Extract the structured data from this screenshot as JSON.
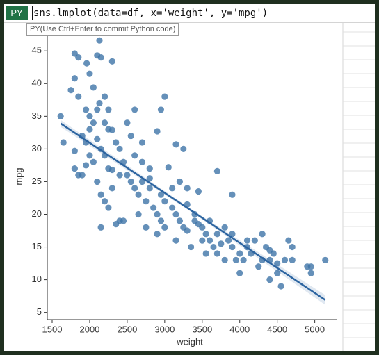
{
  "formula_bar": {
    "badge": "PY",
    "formula": "sns.lmplot(data=df, x='weight', y='mpg')"
  },
  "tooltip": "PY(Use Ctrl+Enter to commit Python code)",
  "chart_data": {
    "type": "scatter",
    "x_label": "weight",
    "y_label": "mpg",
    "color": "#3f74a8",
    "fit_color": "#2c64a0",
    "xlim": [
      1435,
      5300
    ],
    "ylim": [
      3.9,
      48
    ],
    "xticks": [
      1500,
      2000,
      2500,
      3000,
      3500,
      4000,
      4500,
      5000
    ],
    "yticks": [
      5,
      10,
      15,
      20,
      25,
      30,
      35,
      40,
      45
    ],
    "x": [
      1613,
      1650,
      1800,
      1850,
      1960,
      2130,
      2100,
      2150,
      2300,
      1750,
      1800,
      1850,
      2000,
      2050,
      2130,
      2200,
      2950,
      3000,
      2900,
      3150,
      3250,
      3700,
      3900,
      3050,
      2150,
      2400,
      2450,
      2300,
      1800,
      1800,
      1850,
      1950,
      2000,
      2050,
      1900,
      1950,
      2000,
      2050,
      2100,
      2150,
      2200,
      2250,
      2200,
      2250,
      2300,
      2350,
      2400,
      2450,
      2500,
      2550,
      2600,
      2650,
      2700,
      2750,
      2800,
      2850,
      2900,
      2950,
      3000,
      3100,
      3150,
      3200,
      3250,
      3300,
      3400,
      3450,
      3500,
      3550,
      3600,
      3650,
      3700,
      3750,
      3800,
      3850,
      3900,
      3950,
      4000,
      4050,
      4100,
      4150,
      4200,
      4250,
      4300,
      4350,
      4400,
      4450,
      4500,
      4600,
      4700,
      4400,
      4550,
      4900,
      4950,
      5140,
      4950,
      4700,
      4650,
      3200,
      3100,
      2950,
      2800,
      2700,
      2600,
      2550,
      2400,
      2300,
      2250,
      2650,
      2750,
      3000,
      3300,
      3400,
      3600,
      3700,
      3500,
      3350,
      3550,
      3150,
      2900,
      3300,
      3450,
      2350,
      2800,
      2500,
      2600,
      2700,
      2100,
      2000,
      2250,
      1950,
      1900,
      2100,
      2200,
      2150,
      4300,
      4100,
      4000,
      4400,
      4500,
      3800,
      3900
    ],
    "y": [
      35,
      31,
      44.6,
      44,
      43.1,
      46.6,
      44.3,
      44,
      43.4,
      39,
      40.8,
      38,
      41.5,
      39.4,
      37,
      38,
      36,
      38,
      32.7,
      30.7,
      30,
      26.6,
      23,
      27.2,
      18,
      19,
      19,
      26.8,
      29.7,
      27,
      26,
      27.5,
      29,
      28,
      32,
      31,
      33,
      34,
      31.5,
      30,
      29,
      27,
      34,
      33,
      32.9,
      31,
      30,
      28,
      26,
      25,
      24,
      23,
      25,
      22,
      24,
      21,
      20,
      19,
      18,
      21,
      20,
      19,
      18,
      17.5,
      19,
      18.5,
      18,
      17,
      16,
      15,
      14,
      15.5,
      13,
      16,
      15,
      13,
      14,
      13,
      15,
      14,
      16,
      12,
      13,
      15,
      13,
      14,
      11,
      13,
      13,
      10,
      9,
      12,
      12,
      13,
      11,
      15,
      16,
      25,
      24,
      23,
      27,
      28,
      29,
      32,
      26,
      24,
      21,
      20,
      18,
      22,
      21.5,
      20,
      19,
      17,
      16,
      15,
      14,
      16,
      17,
      24,
      23.5,
      18.5,
      25.5,
      34,
      36,
      31,
      36,
      35,
      36,
      36,
      26,
      25,
      22,
      23,
      17,
      16,
      11,
      14.5,
      12.5,
      18,
      17
    ],
    "fit_x": [
      1613,
      5140
    ],
    "fit_y": [
      33.9,
      6.9
    ]
  }
}
